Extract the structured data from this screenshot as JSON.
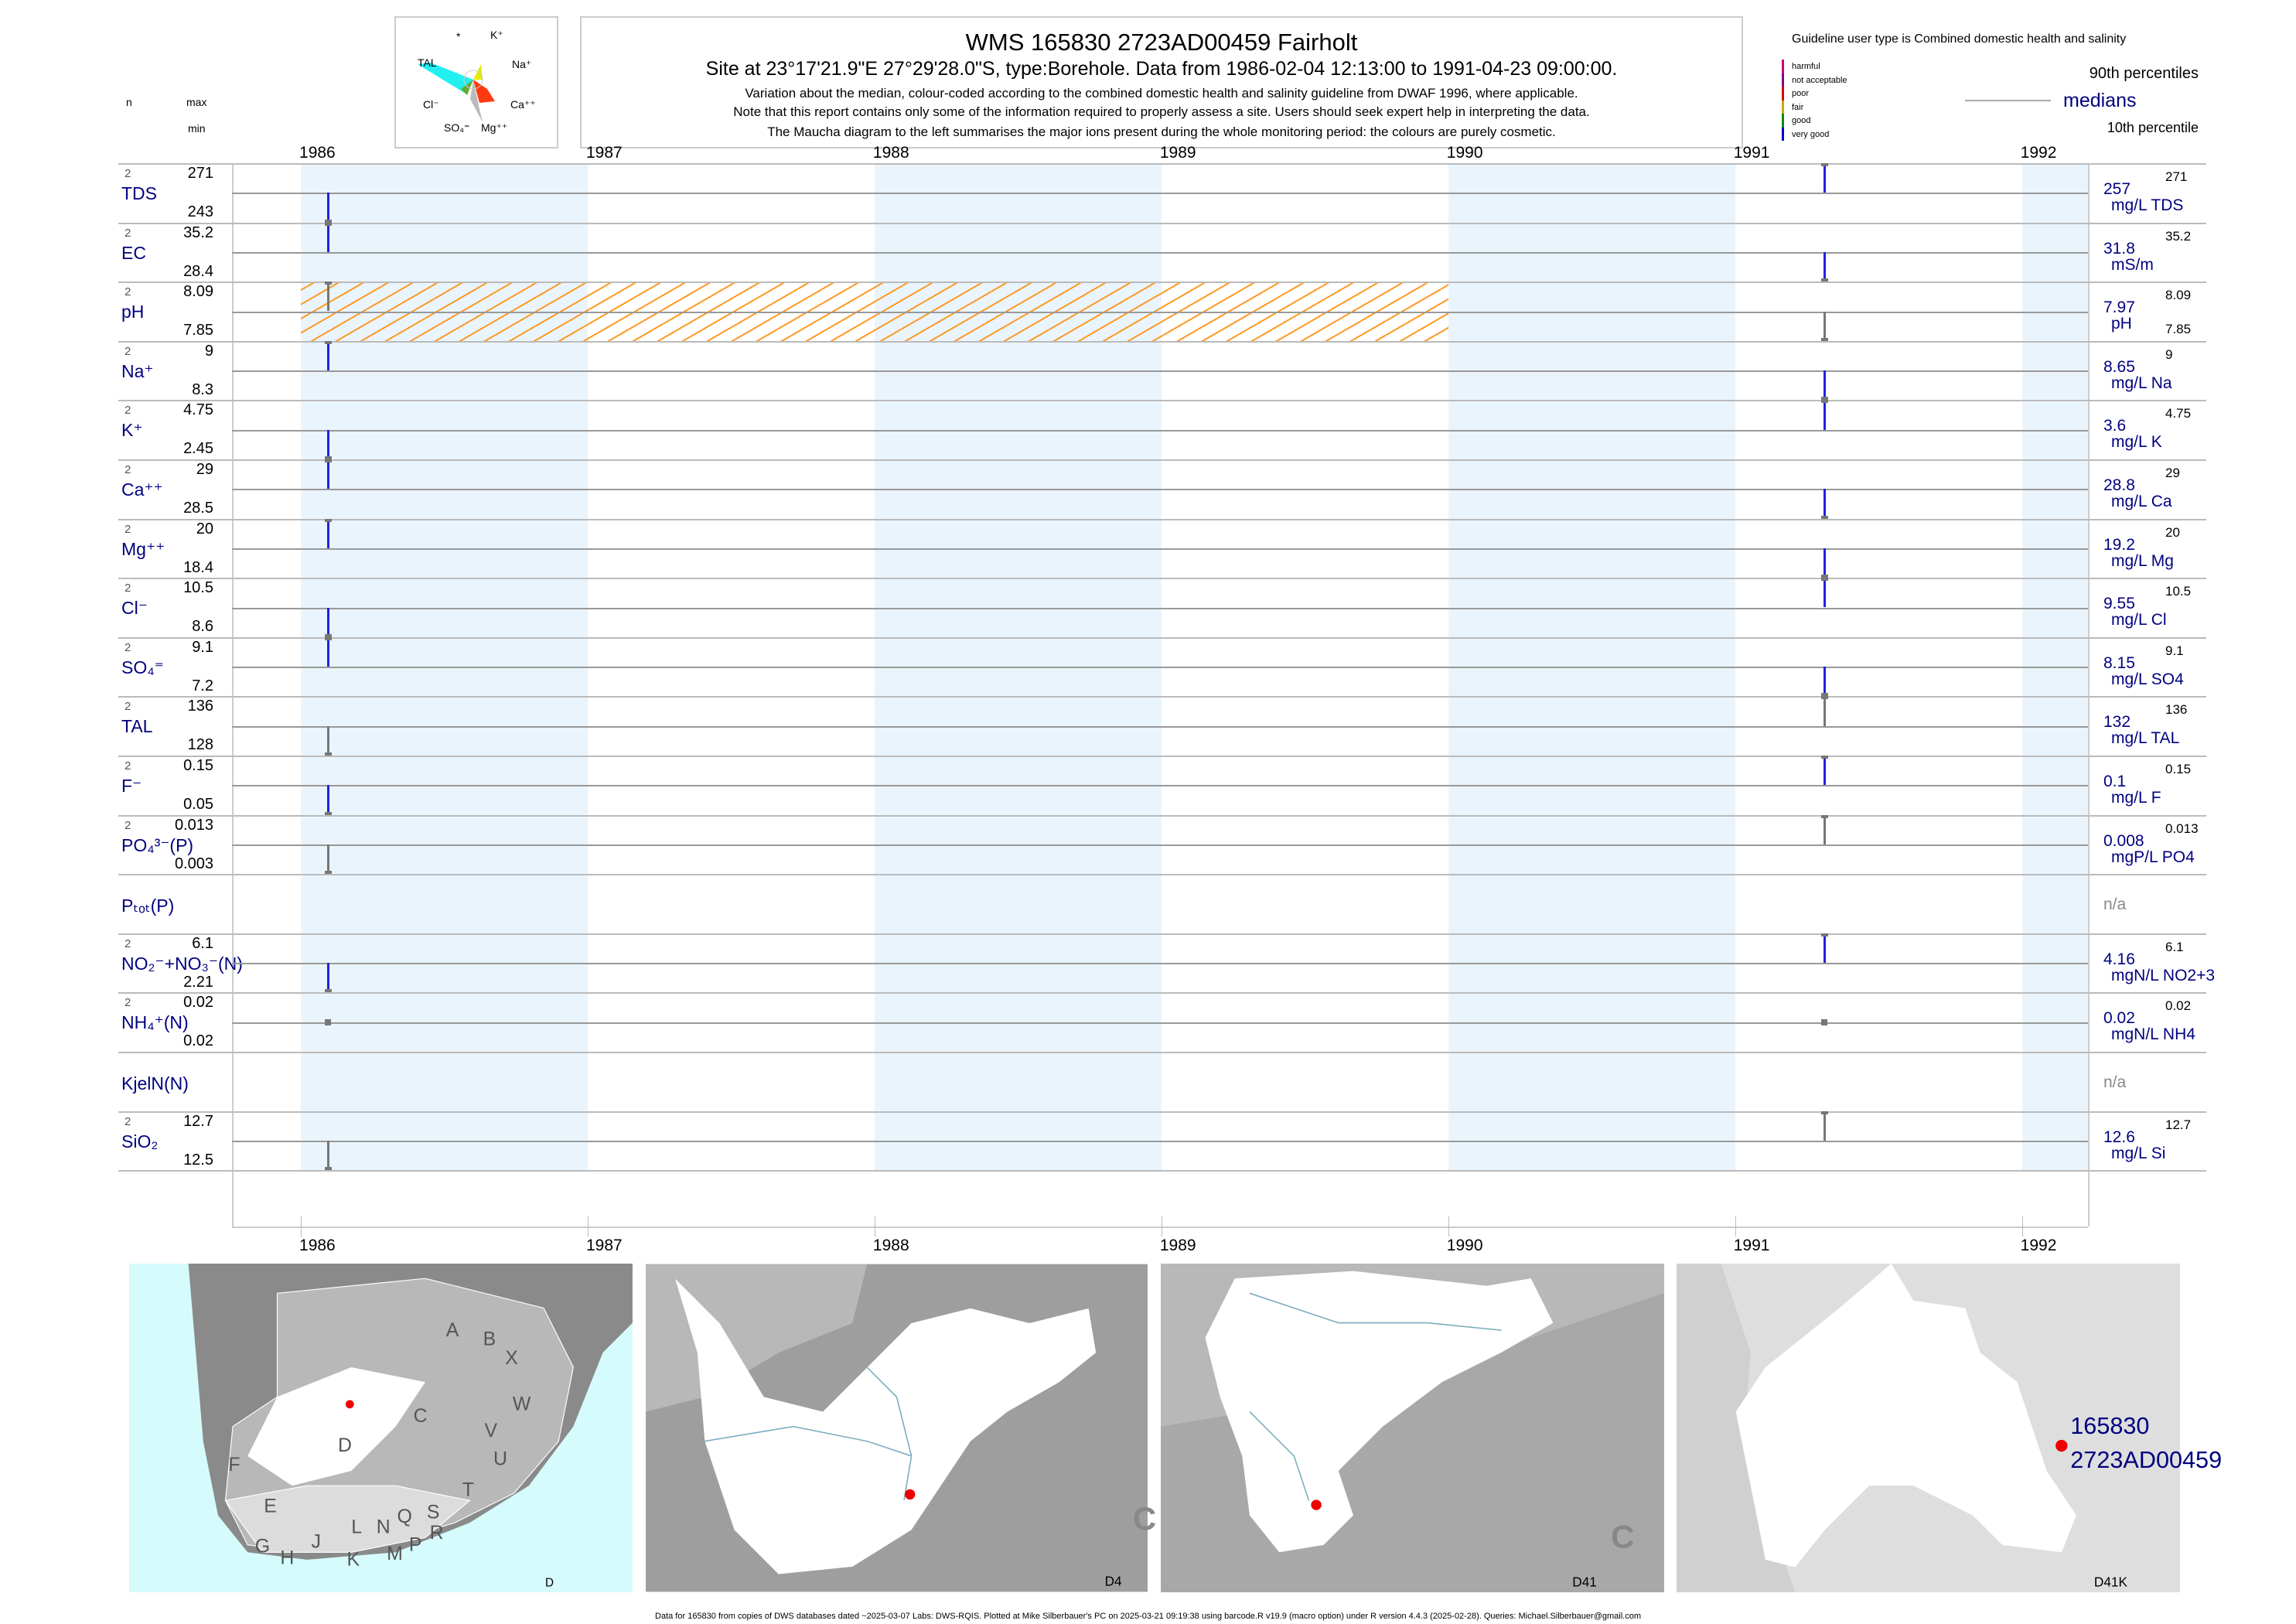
{
  "header": {
    "title": "WMS 165830 2723AD00459 Fairholt",
    "subtitle": "Site at 23°17'21.9\"E 27°29'28.0\"S, type:Borehole.  Data from 1986-02-04 12:13:00 to 1991-04-23 09:00:00.",
    "line1": "Variation about the median,  colour-coded according to the combined domestic health and salinity guideline from DWAF 1996, where applicable.",
    "line2": "Note that this report contains only some of the information required to properly assess a site. Users should seek expert help in interpreting the data.",
    "line3": "The Maucha diagram to the left summarises the major ions present during the whole monitoring period: the colours are purely cosmetic."
  },
  "maucha": {
    "star": "*",
    "k": "K⁺",
    "tal": "TAL",
    "na": "Na⁺",
    "cl": "Cl⁻",
    "ca": "Ca⁺⁺",
    "so4": "SO₄⁼",
    "mg": "Mg⁺⁺"
  },
  "column_headers": {
    "n": "n",
    "max": "max",
    "min": "min"
  },
  "legend": {
    "guideline": "Guideline user type is Combined domestic health and salinity",
    "classes": [
      {
        "label": "harmful",
        "color": "#cc0077"
      },
      {
        "label": "not acceptable",
        "color": "#880088"
      },
      {
        "label": "poor",
        "color": "#dd0000"
      },
      {
        "label": "fair",
        "color": "#ccaa00"
      },
      {
        "label": "good",
        "color": "#118811"
      },
      {
        "label": "very good",
        "color": "#0000cc"
      }
    ],
    "p90": "90th percentiles",
    "medians": "medians",
    "p10": "10th percentile"
  },
  "colors": {
    "band": "#eaf4fd",
    "bar_blue": "#2222dd",
    "bar_gray": "#777777",
    "hatch": "#ff9922",
    "navy": "#000080"
  },
  "chart_data": {
    "type": "table",
    "x_years": [
      "1986",
      "1987",
      "1988",
      "1989",
      "1990",
      "1991",
      "1992"
    ],
    "xlim": [
      1985.76,
      1992.23
    ],
    "shaded_years": [
      1986,
      1988,
      1990,
      1992
    ],
    "hatch": {
      "param": "pH",
      "from": 1986.0,
      "to": 1990.0,
      "class": "fair"
    },
    "rows": [
      {
        "name": "TDS",
        "n": "2",
        "max": "271",
        "min": "243",
        "median": "257",
        "unit": "mg/L TDS",
        "rmax": "271",
        "samples": [
          {
            "t": 1986.095,
            "v": 243,
            "c": "blue"
          },
          {
            "t": 1991.31,
            "v": 271,
            "c": "blue"
          }
        ]
      },
      {
        "name": "EC",
        "n": "2",
        "max": "35.2",
        "min": "28.4",
        "median": "31.8",
        "unit": "mS/m",
        "rmax": "35.2",
        "samples": [
          {
            "t": 1986.095,
            "v": 35.2,
            "c": "blue"
          },
          {
            "t": 1991.31,
            "v": 28.4,
            "c": "blue"
          }
        ]
      },
      {
        "name": "pH",
        "n": "2",
        "max": "8.09",
        "min": "7.85",
        "median": "7.97",
        "unit": "pH",
        "rmax": "8.09",
        "rmin": "7.85",
        "samples": [
          {
            "t": 1986.095,
            "v": 8.09,
            "c": "gray"
          },
          {
            "t": 1991.31,
            "v": 7.85,
            "c": "gray"
          }
        ]
      },
      {
        "name": "Na⁺",
        "n": "2",
        "max": "9",
        "min": "8.3",
        "median": "8.65",
        "unit": "mg/L Na",
        "rmax": "9",
        "samples": [
          {
            "t": 1986.095,
            "v": 9,
            "c": "blue"
          },
          {
            "t": 1991.31,
            "v": 8.3,
            "c": "blue"
          }
        ]
      },
      {
        "name": "K⁺",
        "n": "2",
        "max": "4.75",
        "min": "2.45",
        "median": "3.6",
        "unit": "mg/L K",
        "rmax": "4.75",
        "samples": [
          {
            "t": 1986.095,
            "v": 2.45,
            "c": "blue"
          },
          {
            "t": 1991.31,
            "v": 4.75,
            "c": "blue"
          }
        ]
      },
      {
        "name": "Ca⁺⁺",
        "n": "2",
        "max": "29",
        "min": "28.5",
        "median": "28.8",
        "unit": "mg/L Ca",
        "rmax": "29",
        "samples": [
          {
            "t": 1986.095,
            "v": 29,
            "c": "blue"
          },
          {
            "t": 1991.31,
            "v": 28.5,
            "c": "blue"
          }
        ]
      },
      {
        "name": "Mg⁺⁺",
        "n": "2",
        "max": "20",
        "min": "18.4",
        "median": "19.2",
        "unit": "mg/L Mg",
        "rmax": "20",
        "samples": [
          {
            "t": 1986.095,
            "v": 20,
            "c": "blue"
          },
          {
            "t": 1991.31,
            "v": 18.4,
            "c": "blue"
          }
        ]
      },
      {
        "name": "Cl⁻",
        "n": "2",
        "max": "10.5",
        "min": "8.6",
        "median": "9.55",
        "unit": "mg/L Cl",
        "rmax": "10.5",
        "samples": [
          {
            "t": 1986.095,
            "v": 8.6,
            "c": "blue"
          },
          {
            "t": 1991.31,
            "v": 10.5,
            "c": "blue"
          }
        ]
      },
      {
        "name": "SO₄⁼",
        "n": "2",
        "max": "9.1",
        "min": "7.2",
        "median": "8.15",
        "unit": "mg/L SO4",
        "rmax": "9.1",
        "samples": [
          {
            "t": 1986.095,
            "v": 9.1,
            "c": "blue"
          },
          {
            "t": 1991.31,
            "v": 7.2,
            "c": "blue"
          }
        ]
      },
      {
        "name": "TAL",
        "n": "2",
        "max": "136",
        "min": "128",
        "median": "132",
        "unit": "mg/L TAL",
        "rmax": "136",
        "samples": [
          {
            "t": 1986.095,
            "v": 128,
            "c": "gray"
          },
          {
            "t": 1991.31,
            "v": 136,
            "c": "gray"
          }
        ]
      },
      {
        "name": "F⁻",
        "n": "2",
        "max": "0.15",
        "min": "0.05",
        "median": "0.1",
        "unit": "mg/L F",
        "rmax": "0.15",
        "samples": [
          {
            "t": 1986.095,
            "v": 0.05,
            "c": "blue"
          },
          {
            "t": 1991.31,
            "v": 0.15,
            "c": "blue"
          }
        ]
      },
      {
        "name": "PO₄³⁻(P)",
        "n": "2",
        "max": "0.013",
        "min": "0.003",
        "median": "0.008",
        "unit": "mgP/L PO4",
        "rmax": "0.013",
        "samples": [
          {
            "t": 1986.095,
            "v": 0.003,
            "c": "gray"
          },
          {
            "t": 1991.31,
            "v": 0.013,
            "c": "gray"
          }
        ]
      },
      {
        "name": "Pₜₒₜ(P)",
        "median": "n/a",
        "samples": []
      },
      {
        "name": "NO₂⁻+NO₃⁻(N)",
        "n": "2",
        "max": "6.1",
        "min": "2.21",
        "median": "4.16",
        "unit": "mgN/L NO2+3",
        "rmax": "6.1",
        "samples": [
          {
            "t": 1986.095,
            "v": 2.21,
            "c": "blue"
          },
          {
            "t": 1991.31,
            "v": 6.1,
            "c": "blue"
          }
        ]
      },
      {
        "name": "NH₄⁺(N)",
        "n": "2",
        "max": "0.02",
        "min": "0.02",
        "median": "0.02",
        "unit": "mgN/L NH4",
        "rmax": "0.02",
        "samples": [
          {
            "t": 1986.095,
            "v": 0.02,
            "c": "gray"
          },
          {
            "t": 1991.31,
            "v": 0.02,
            "c": "gray"
          }
        ]
      },
      {
        "name": "KjelN(N)",
        "median": "n/a",
        "samples": []
      },
      {
        "name": "SiO₂",
        "n": "2",
        "max": "12.7",
        "min": "12.5",
        "median": "12.6",
        "unit": "mg/L Si",
        "rmax": "12.7",
        "samples": [
          {
            "t": 1986.095,
            "v": 12.5,
            "c": "gray"
          },
          {
            "t": 1991.31,
            "v": 12.7,
            "c": "gray"
          }
        ]
      }
    ]
  },
  "maps": {
    "m1": {
      "label": "D",
      "letters": [
        "A",
        "B",
        "X",
        "W",
        "C",
        "V",
        "U",
        "D",
        "T",
        "F",
        "E",
        "S",
        "R",
        "Q",
        "P",
        "N",
        "M",
        "L",
        "K",
        "J",
        "H",
        "G"
      ]
    },
    "m2": {
      "label": "D4",
      "region": "C"
    },
    "m3": {
      "label": "D41",
      "region": "C"
    },
    "m4": {
      "label": "D41K",
      "site_id": "165830",
      "site_code": "2723AD00459"
    }
  },
  "footer": "Data for 165830 from copies of DWS databases dated ~2025-03-07 Labs: DWS-RQIS. Plotted at Mike Silberbauer's PC on 2025-03-21 09:19:38 using barcode.R v19.9 (macro option) under R version 4.4.3 (2025-02-28). Queries: Michael.Silberbauer@gmail.com"
}
